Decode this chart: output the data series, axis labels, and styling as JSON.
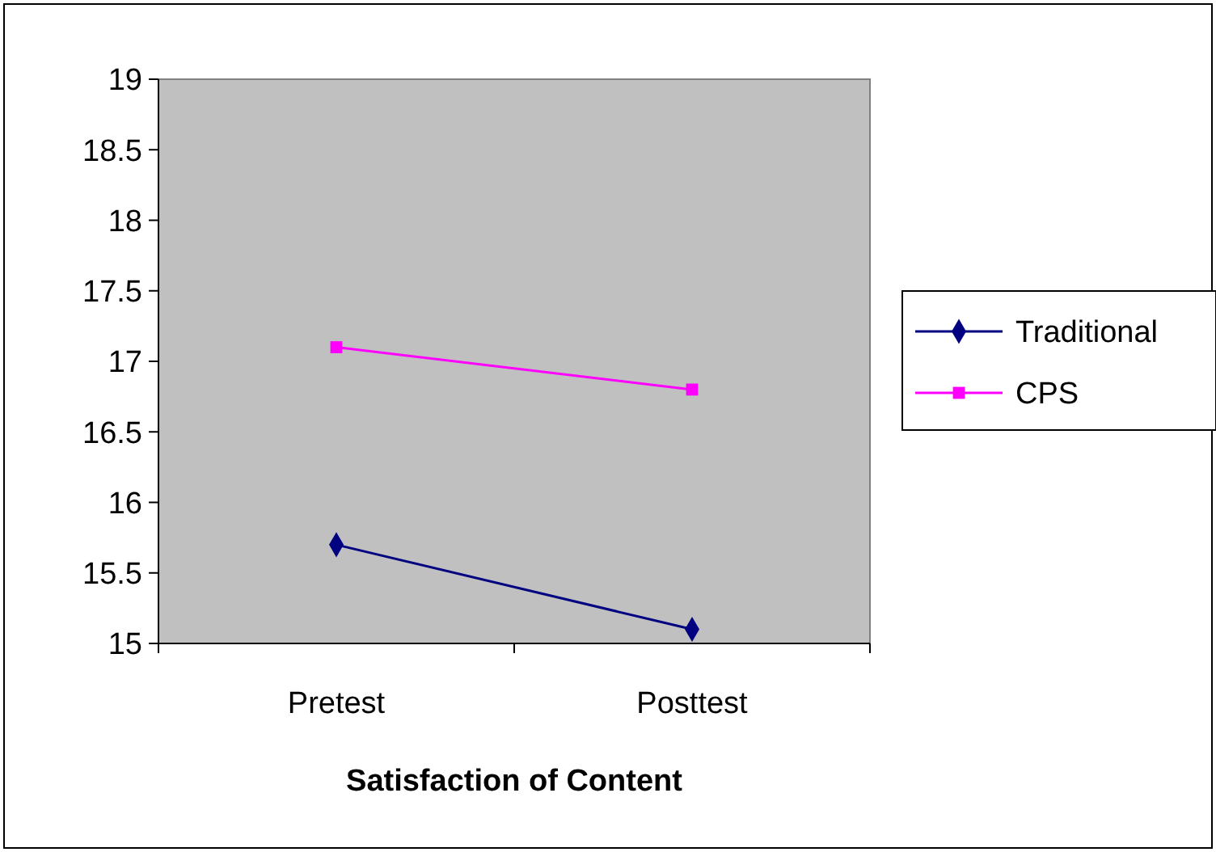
{
  "chart_data": {
    "type": "line",
    "xlabel": "Satisfaction of Content",
    "categories": [
      "Pretest",
      "Posttest"
    ],
    "series": [
      {
        "name": "Traditional",
        "color": "#000080",
        "marker": "diamond",
        "values": [
          15.7,
          15.1
        ]
      },
      {
        "name": "CPS",
        "color": "#ff00ff",
        "marker": "square",
        "values": [
          17.1,
          16.8
        ]
      }
    ],
    "ylim": [
      15,
      19
    ],
    "yticks": [
      15,
      15.5,
      16,
      16.5,
      17,
      17.5,
      18,
      18.5,
      19
    ],
    "legend": "right"
  }
}
